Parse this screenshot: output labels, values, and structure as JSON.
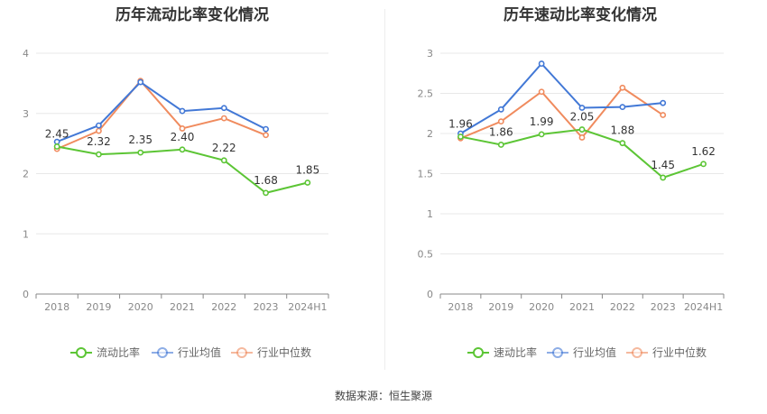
{
  "source": "数据来源：恒生聚源",
  "chart_data": [
    {
      "type": "line",
      "title": "历年流动比率变化情况",
      "categories": [
        "2018",
        "2019",
        "2020",
        "2021",
        "2022",
        "2023",
        "2024H1"
      ],
      "ylim": [
        0,
        4
      ],
      "yticks": [
        0,
        1,
        2,
        3,
        4
      ],
      "grid": true,
      "legend_position": "bottom",
      "series": [
        {
          "name": "流动比率",
          "color": "#5cc535",
          "values": [
            2.45,
            2.32,
            2.35,
            2.4,
            2.22,
            1.68,
            1.85
          ],
          "labels": [
            "2.45",
            "2.32",
            "2.35",
            "2.40",
            "2.22",
            "1.68",
            "1.85"
          ]
        },
        {
          "name": "行业均值",
          "color": "#4278d6",
          "values": [
            2.53,
            2.8,
            3.52,
            3.04,
            3.09,
            2.74,
            null
          ]
        },
        {
          "name": "行业中位数",
          "color": "#f08b5e",
          "values": [
            2.41,
            2.71,
            3.54,
            2.75,
            2.92,
            2.64,
            null
          ]
        }
      ]
    },
    {
      "type": "line",
      "title": "历年速动比率变化情况",
      "categories": [
        "2018",
        "2019",
        "2020",
        "2021",
        "2022",
        "2023",
        "2024H1"
      ],
      "ylim": [
        0,
        3
      ],
      "yticks": [
        0,
        0.5,
        1,
        1.5,
        2,
        2.5,
        3
      ],
      "grid": true,
      "legend_position": "bottom",
      "series": [
        {
          "name": "速动比率",
          "color": "#5cc535",
          "values": [
            1.96,
            1.86,
            1.99,
            2.05,
            1.88,
            1.45,
            1.62
          ],
          "labels": [
            "1.96",
            "1.86",
            "1.99",
            "2.05",
            "1.88",
            "1.45",
            "1.62"
          ]
        },
        {
          "name": "行业均值",
          "color": "#4278d6",
          "values": [
            2.0,
            2.3,
            2.87,
            2.32,
            2.33,
            2.38,
            null
          ]
        },
        {
          "name": "行业中位数",
          "color": "#f08b5e",
          "values": [
            1.94,
            2.15,
            2.52,
            1.95,
            2.57,
            2.23,
            null
          ]
        }
      ]
    }
  ]
}
